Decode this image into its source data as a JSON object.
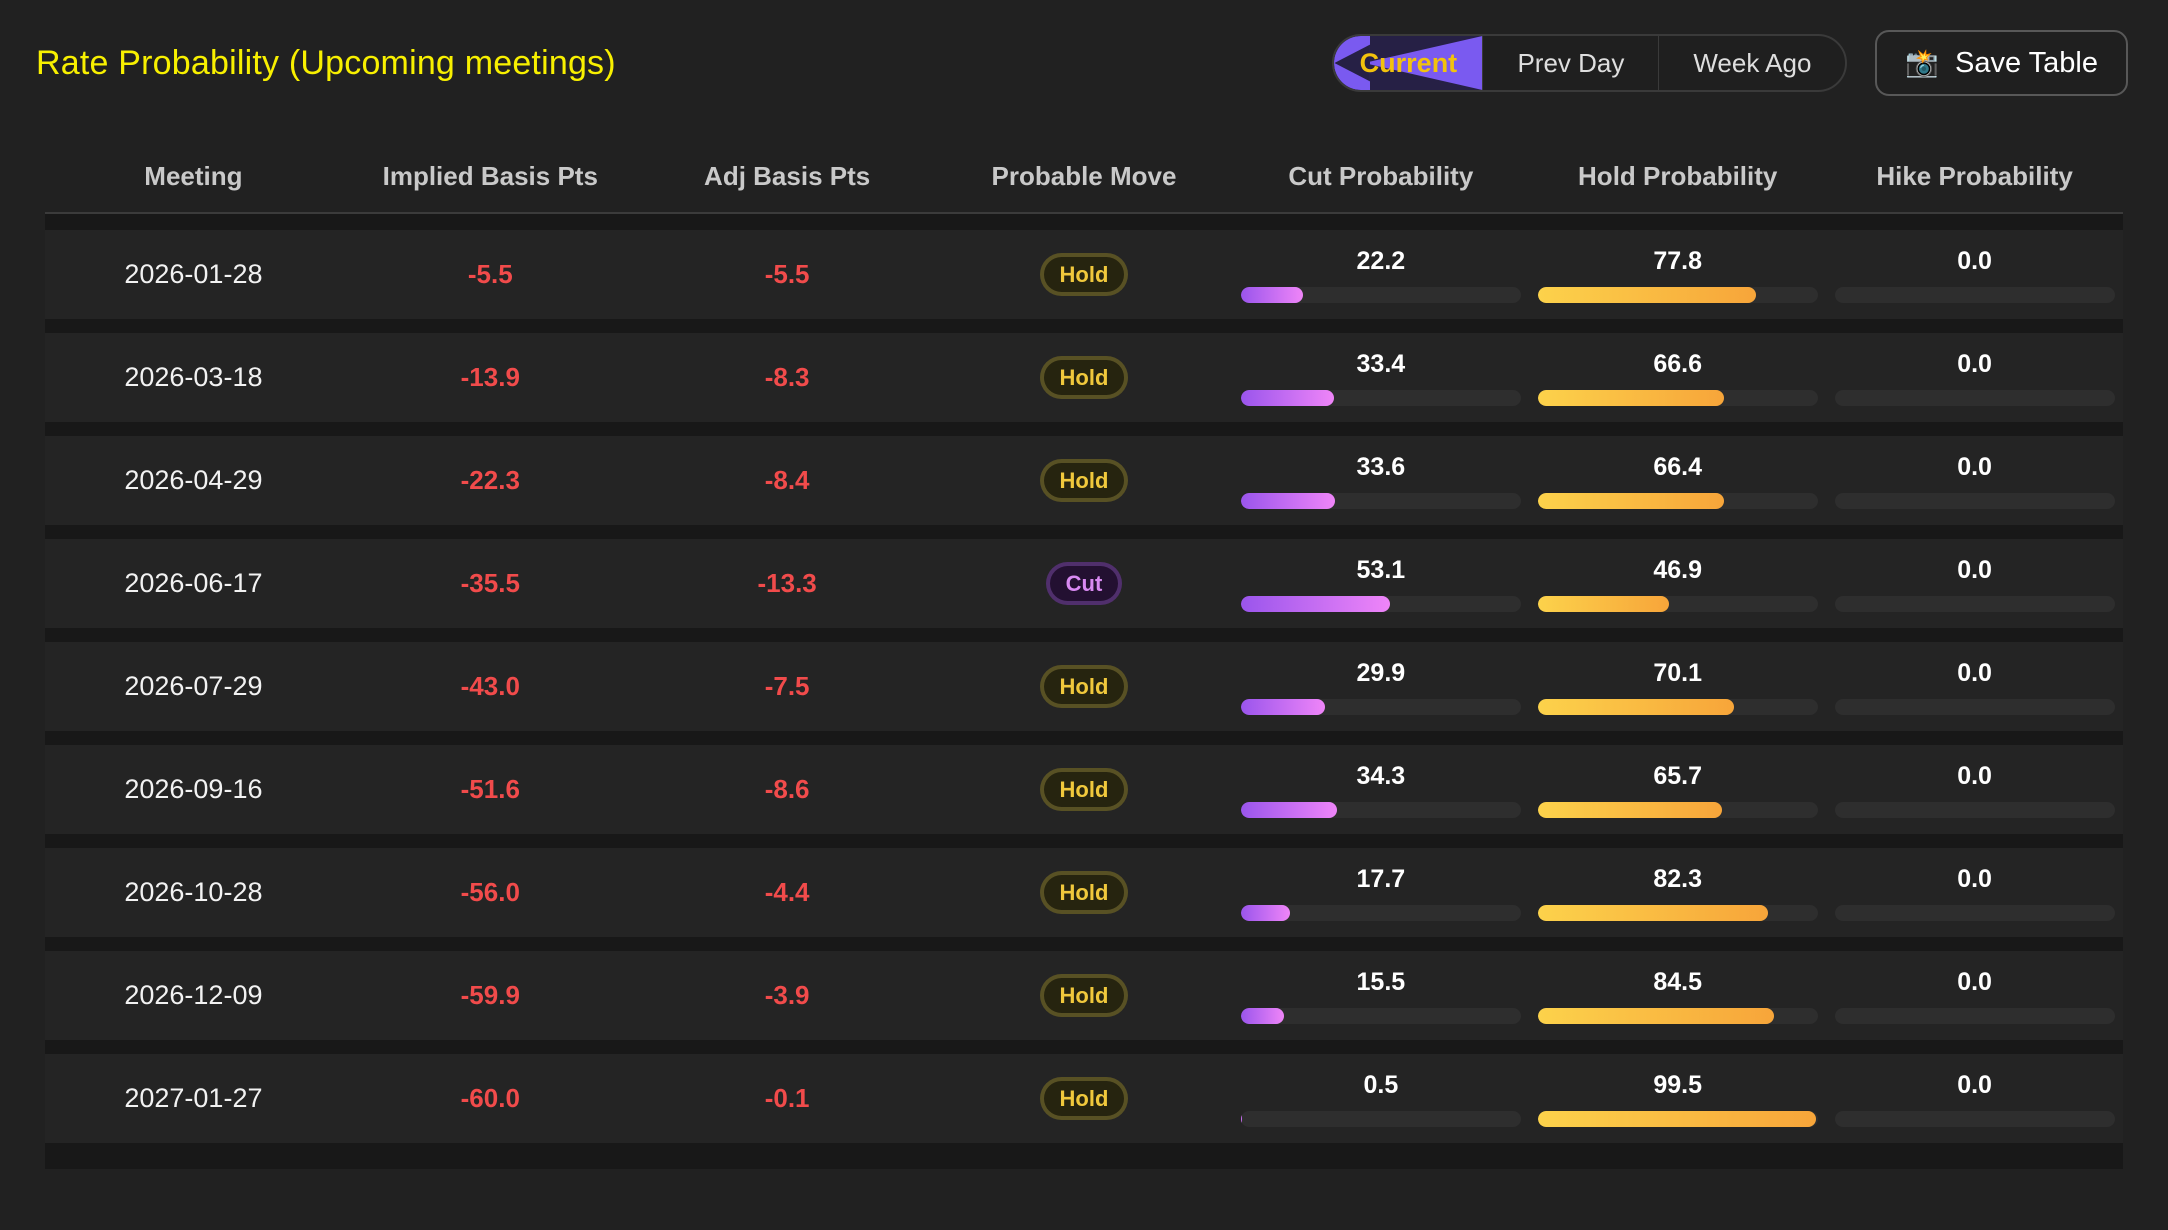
{
  "title": "Rate Probability (Upcoming meetings)",
  "toolbar": {
    "tabs": [
      {
        "label": "Current",
        "active": true
      },
      {
        "label": "Prev Day",
        "active": false
      },
      {
        "label": "Week Ago",
        "active": false
      }
    ],
    "save_button_label": "Save Table",
    "save_button_icon": "camera-flash-icon",
    "save_button_glyph": "📸"
  },
  "table": {
    "columns": [
      "Meeting",
      "Implied Basis Pts",
      "Adj Basis Pts",
      "Probable Move",
      "Cut Probability",
      "Hold Probability",
      "Hike Probability"
    ],
    "rows": [
      {
        "meeting": "2026-01-28",
        "implied_bp": "-5.5",
        "adj_bp": "-5.5",
        "move": "Hold",
        "cut": "22.2",
        "hold": "77.8",
        "hike": "0.0"
      },
      {
        "meeting": "2026-03-18",
        "implied_bp": "-13.9",
        "adj_bp": "-8.3",
        "move": "Hold",
        "cut": "33.4",
        "hold": "66.6",
        "hike": "0.0"
      },
      {
        "meeting": "2026-04-29",
        "implied_bp": "-22.3",
        "adj_bp": "-8.4",
        "move": "Hold",
        "cut": "33.6",
        "hold": "66.4",
        "hike": "0.0"
      },
      {
        "meeting": "2026-06-17",
        "implied_bp": "-35.5",
        "adj_bp": "-13.3",
        "move": "Cut",
        "cut": "53.1",
        "hold": "46.9",
        "hike": "0.0"
      },
      {
        "meeting": "2026-07-29",
        "implied_bp": "-43.0",
        "adj_bp": "-7.5",
        "move": "Hold",
        "cut": "29.9",
        "hold": "70.1",
        "hike": "0.0"
      },
      {
        "meeting": "2026-09-16",
        "implied_bp": "-51.6",
        "adj_bp": "-8.6",
        "move": "Hold",
        "cut": "34.3",
        "hold": "65.7",
        "hike": "0.0"
      },
      {
        "meeting": "2026-10-28",
        "implied_bp": "-56.0",
        "adj_bp": "-4.4",
        "move": "Hold",
        "cut": "17.7",
        "hold": "82.3",
        "hike": "0.0"
      },
      {
        "meeting": "2026-12-09",
        "implied_bp": "-59.9",
        "adj_bp": "-3.9",
        "move": "Hold",
        "cut": "15.5",
        "hold": "84.5",
        "hike": "0.0"
      },
      {
        "meeting": "2027-01-27",
        "implied_bp": "-60.0",
        "adj_bp": "-0.1",
        "move": "Hold",
        "cut": "0.5",
        "hold": "99.5",
        "hike": "0.0"
      }
    ]
  },
  "colors": {
    "title": "#f8f000",
    "negative_value": "#f14b4b",
    "cut_bar_start": "#9a55ec",
    "cut_bar_end": "#ef85f8",
    "hold_bar_start": "#fcd24b",
    "hold_bar_end": "#f7a53a",
    "active_tab_bg": "#7a5af0",
    "active_tab_text": "#f2c20d",
    "hold_badge_text": "#f0c83c",
    "cut_badge_text": "#d98af2"
  }
}
